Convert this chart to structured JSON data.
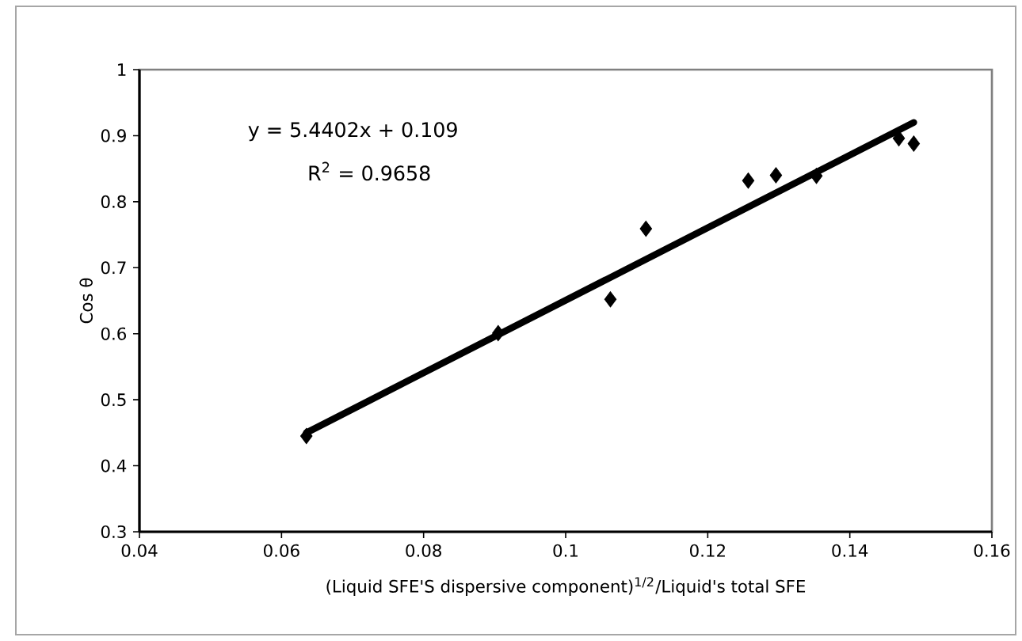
{
  "chart_data": {
    "type": "scatter",
    "xlabel": "(Liquid SFE'S dispersive component)$^{1/2}$/Liquid's total SFE",
    "ylabel": "Cos θ",
    "annotations": [
      "y = 5.4402x + 0.109",
      "R$^{2}$ = 0.9658"
    ],
    "xlim": [
      0.04,
      0.16
    ],
    "xticks": [
      0.04,
      0.06,
      0.08,
      0.1,
      0.12,
      0.14,
      0.16
    ],
    "ylim": [
      0.3,
      1
    ],
    "yticks": [
      0.3,
      0.4,
      0.5,
      0.6,
      0.7,
      0.8,
      0.9,
      1
    ],
    "series": [
      {
        "marker": "diamond",
        "color": "#000000",
        "x": [
          0.0635,
          0.0905,
          0.1063,
          0.1113,
          0.1257,
          0.1296,
          0.1353,
          0.1469,
          0.149
        ],
        "values": [
          0.445,
          0.601,
          0.652,
          0.759,
          0.832,
          0.84,
          0.839,
          0.896,
          0.888
        ]
      },
      {
        "type": "line",
        "color": "#000000",
        "x": [
          0.0635,
          0.149
        ],
        "values": [
          0.45,
          0.92
        ]
      }
    ]
  }
}
